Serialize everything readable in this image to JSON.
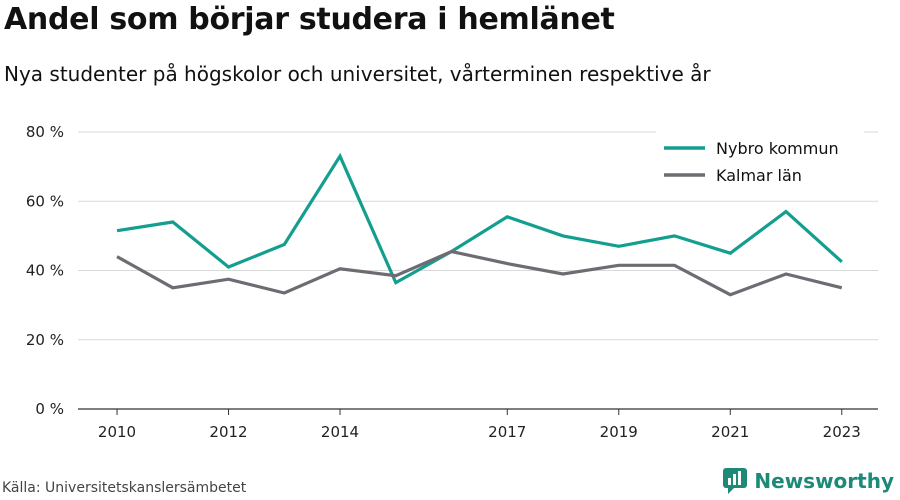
{
  "header": {
    "title": "Andel som börjar studera i hemlänet",
    "subtitle": "Nya studenter på högskolor och universitet, vårterminen respektive år"
  },
  "footer": {
    "source": "Källa: Universitetskanslersämbetet",
    "brand": "Newsworthy"
  },
  "chart_data": {
    "type": "line",
    "title": "Andel som börjar studera i hemlänet",
    "subtitle": "Nya studenter på högskolor och universitet, vårterminen respektive år",
    "xlabel": "",
    "ylabel": "",
    "x": [
      2010,
      2011,
      2012,
      2013,
      2014,
      2015,
      2016,
      2017,
      2018,
      2019,
      2020,
      2021,
      2022,
      2023
    ],
    "x_tick_labels": [
      "2010",
      "2012",
      "2014",
      "2017",
      "2019",
      "2021",
      "2023"
    ],
    "x_tick_values": [
      2010,
      2012,
      2014,
      2017,
      2019,
      2021,
      2023
    ],
    "xlim": [
      2009.3,
      2023.65
    ],
    "ylim": [
      0,
      80
    ],
    "y_ticks": [
      0,
      20,
      40,
      60,
      80
    ],
    "y_tick_labels": [
      "0 %",
      "20 %",
      "40 %",
      "60 %",
      "80 %"
    ],
    "grid": "horizontal",
    "legend_position": "top-right",
    "series": [
      {
        "name": "Nybro kommun",
        "color": "#139e8f",
        "values": [
          51.5,
          54,
          41,
          47.5,
          73,
          36.5,
          45.5,
          55.5,
          50,
          47,
          50,
          45,
          57,
          42.5
        ]
      },
      {
        "name": "Kalmar län",
        "color": "#6e6c72",
        "values": [
          44,
          35,
          37.5,
          33.5,
          40.5,
          38.5,
          45.5,
          42,
          39,
          41.5,
          41.5,
          33,
          39,
          35
        ]
      }
    ]
  }
}
